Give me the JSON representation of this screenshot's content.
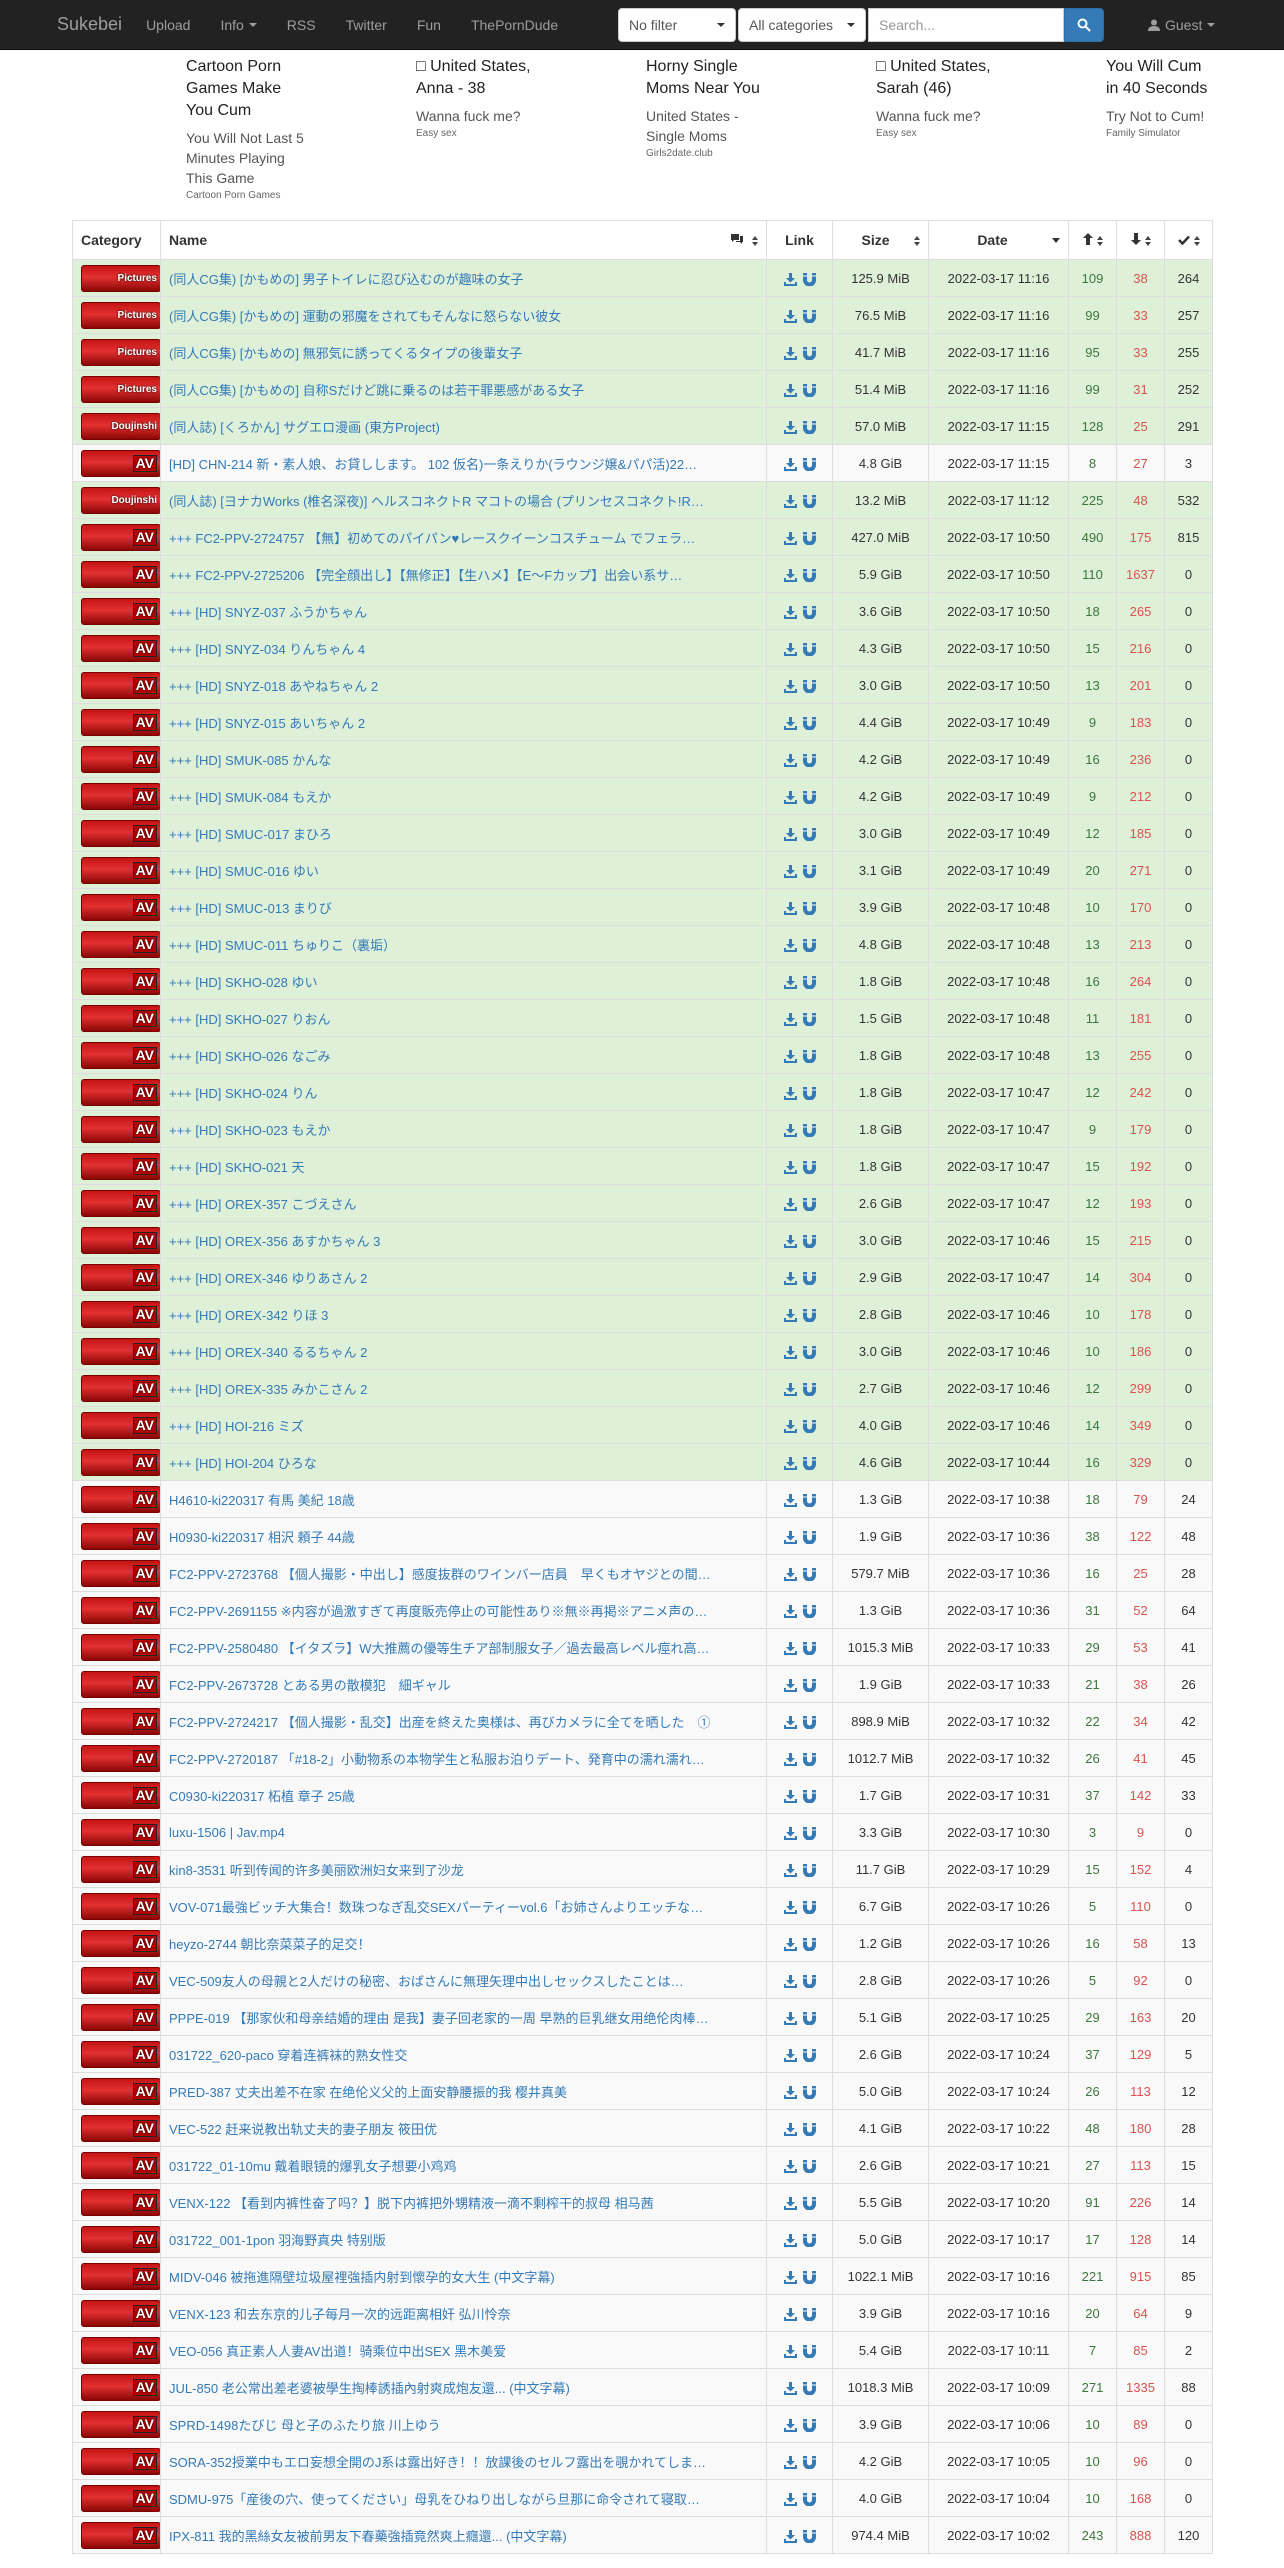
{
  "nav": {
    "brand": "Sukebei",
    "upload": "Upload",
    "info": "Info",
    "rss": "RSS",
    "twitter": "Twitter",
    "fun": "Fun",
    "porndude": "ThePornDude",
    "filter": "No filter",
    "categories": "All categories",
    "search_placeholder": "Search...",
    "guest": "Guest"
  },
  "ads": [
    {
      "title": "Cartoon Porn Games Make You Cum",
      "body": "You Will Not Last 5 Minutes Playing This Game",
      "foot": "Cartoon Porn Games"
    },
    {
      "title": "□ United States, Anna - 38",
      "body": "Wanna fuck me?",
      "foot": "Easy sex"
    },
    {
      "title": "Horny Single Moms Near You",
      "body": "United States - Single Moms",
      "foot": "Girls2date.club"
    },
    {
      "title": "□ United States, Sarah (46)",
      "body": "Wanna fuck me?",
      "foot": "Easy sex"
    },
    {
      "title": "You Will Cum in 40 Seconds",
      "body": "Try Not to Cum!",
      "foot": "Family Simulator"
    }
  ],
  "table": {
    "headers": {
      "category": "Category",
      "name": "Name",
      "link": "Link",
      "size": "Size",
      "date": "Date"
    },
    "rows": [
      {
        "cat": "Pictures",
        "name": "(同人CG集) [かもめの] 男子トイレに忍び込むのが趣味の女子",
        "size": "125.9 MiB",
        "date": "2022-03-17 11:16",
        "s": "109",
        "l": "38",
        "d": "264",
        "trusted": true
      },
      {
        "cat": "Pictures",
        "name": "(同人CG集) [かもめの] 運動の邪魔をされてもそんなに怒らない彼女",
        "size": "76.5 MiB",
        "date": "2022-03-17 11:16",
        "s": "99",
        "l": "33",
        "d": "257",
        "trusted": true
      },
      {
        "cat": "Pictures",
        "name": "(同人CG集) [かもめの] 無邪気に誘ってくるタイプの後輩女子",
        "size": "41.7 MiB",
        "date": "2022-03-17 11:16",
        "s": "95",
        "l": "33",
        "d": "255",
        "trusted": true
      },
      {
        "cat": "Pictures",
        "name": "(同人CG集) [かもめの] 自称Sだけど跳に乗るのは若干罪悪感がある女子",
        "size": "51.4 MiB",
        "date": "2022-03-17 11:16",
        "s": "99",
        "l": "31",
        "d": "252",
        "trusted": true
      },
      {
        "cat": "Doujinshi",
        "name": "(同人誌) [くろかん] サグエロ漫画 (東方Project)",
        "size": "57.0 MiB",
        "date": "2022-03-17 11:15",
        "s": "128",
        "l": "25",
        "d": "291",
        "trusted": true
      },
      {
        "cat": "AV",
        "name": "[HD] CHN-214 新・素人娘、お貸しします。 102 仮名)一条えりか(ラウンジ嬢&パパ活)22…",
        "size": "4.8 GiB",
        "date": "2022-03-17 11:15",
        "s": "8",
        "l": "27",
        "d": "3",
        "trusted": false
      },
      {
        "cat": "Doujinshi",
        "name": "(同人誌) [ヨナカWorks (椎名深夜)] ヘルスコネクトR マコトの場合 (プリンセスコネクト!R…",
        "size": "13.2 MiB",
        "date": "2022-03-17 11:12",
        "s": "225",
        "l": "48",
        "d": "532",
        "trusted": true
      },
      {
        "cat": "AV",
        "name": "+++ FC2-PPV-2724757 【無】初めてのパイパン♥レースクイーンコスチューム でフェラ…",
        "size": "427.0 MiB",
        "date": "2022-03-17 10:50",
        "s": "490",
        "l": "175",
        "d": "815",
        "trusted": true
      },
      {
        "cat": "AV",
        "name": "+++ FC2-PPV-2725206 【完全顔出し】【無修正】【生ハメ】【E～Fカップ】出会い系サ…",
        "size": "5.9 GiB",
        "date": "2022-03-17 10:50",
        "s": "110",
        "l": "1637",
        "d": "0",
        "trusted": true
      },
      {
        "cat": "AV",
        "name": "+++ [HD] SNYZ-037 ふうかちゃん",
        "size": "3.6 GiB",
        "date": "2022-03-17 10:50",
        "s": "18",
        "l": "265",
        "d": "0",
        "trusted": true
      },
      {
        "cat": "AV",
        "name": "+++ [HD] SNYZ-034 りんちゃん 4",
        "size": "4.3 GiB",
        "date": "2022-03-17 10:50",
        "s": "15",
        "l": "216",
        "d": "0",
        "trusted": true
      },
      {
        "cat": "AV",
        "name": "+++ [HD] SNYZ-018 あやねちゃん 2",
        "size": "3.0 GiB",
        "date": "2022-03-17 10:50",
        "s": "13",
        "l": "201",
        "d": "0",
        "trusted": true
      },
      {
        "cat": "AV",
        "name": "+++ [HD] SNYZ-015 あいちゃん 2",
        "size": "4.4 GiB",
        "date": "2022-03-17 10:49",
        "s": "9",
        "l": "183",
        "d": "0",
        "trusted": true
      },
      {
        "cat": "AV",
        "name": "+++ [HD] SMUK-085 かんな",
        "size": "4.2 GiB",
        "date": "2022-03-17 10:49",
        "s": "16",
        "l": "236",
        "d": "0",
        "trusted": true
      },
      {
        "cat": "AV",
        "name": "+++ [HD] SMUK-084 もえか",
        "size": "4.2 GiB",
        "date": "2022-03-17 10:49",
        "s": "9",
        "l": "212",
        "d": "0",
        "trusted": true
      },
      {
        "cat": "AV",
        "name": "+++ [HD] SMUC-017 まひろ",
        "size": "3.0 GiB",
        "date": "2022-03-17 10:49",
        "s": "12",
        "l": "185",
        "d": "0",
        "trusted": true
      },
      {
        "cat": "AV",
        "name": "+++ [HD] SMUC-016 ゆい",
        "size": "3.1 GiB",
        "date": "2022-03-17 10:49",
        "s": "20",
        "l": "271",
        "d": "0",
        "trusted": true
      },
      {
        "cat": "AV",
        "name": "+++ [HD] SMUC-013 まりび",
        "size": "3.9 GiB",
        "date": "2022-03-17 10:48",
        "s": "10",
        "l": "170",
        "d": "0",
        "trusted": true
      },
      {
        "cat": "AV",
        "name": "+++ [HD] SMUC-011 ちゅりこ（裏垢）",
        "size": "4.8 GiB",
        "date": "2022-03-17 10:48",
        "s": "13",
        "l": "213",
        "d": "0",
        "trusted": true
      },
      {
        "cat": "AV",
        "name": "+++ [HD] SKHO-028 ゆい",
        "size": "1.8 GiB",
        "date": "2022-03-17 10:48",
        "s": "16",
        "l": "264",
        "d": "0",
        "trusted": true
      },
      {
        "cat": "AV",
        "name": "+++ [HD] SKHO-027 りおん",
        "size": "1.5 GiB",
        "date": "2022-03-17 10:48",
        "s": "11",
        "l": "181",
        "d": "0",
        "trusted": true
      },
      {
        "cat": "AV",
        "name": "+++ [HD] SKHO-026 なごみ",
        "size": "1.8 GiB",
        "date": "2022-03-17 10:48",
        "s": "13",
        "l": "255",
        "d": "0",
        "trusted": true
      },
      {
        "cat": "AV",
        "name": "+++ [HD] SKHO-024 りん",
        "size": "1.8 GiB",
        "date": "2022-03-17 10:47",
        "s": "12",
        "l": "242",
        "d": "0",
        "trusted": true
      },
      {
        "cat": "AV",
        "name": "+++ [HD] SKHO-023 もえか",
        "size": "1.8 GiB",
        "date": "2022-03-17 10:47",
        "s": "9",
        "l": "179",
        "d": "0",
        "trusted": true
      },
      {
        "cat": "AV",
        "name": "+++ [HD] SKHO-021 天",
        "size": "1.8 GiB",
        "date": "2022-03-17 10:47",
        "s": "15",
        "l": "192",
        "d": "0",
        "trusted": true
      },
      {
        "cat": "AV",
        "name": "+++ [HD] OREX-357 こづえさん",
        "size": "2.6 GiB",
        "date": "2022-03-17 10:47",
        "s": "12",
        "l": "193",
        "d": "0",
        "trusted": true
      },
      {
        "cat": "AV",
        "name": "+++ [HD] OREX-356 あすかちゃん 3",
        "size": "3.0 GiB",
        "date": "2022-03-17 10:46",
        "s": "15",
        "l": "215",
        "d": "0",
        "trusted": true
      },
      {
        "cat": "AV",
        "name": "+++ [HD] OREX-346 ゆりあさん 2",
        "size": "2.9 GiB",
        "date": "2022-03-17 10:47",
        "s": "14",
        "l": "304",
        "d": "0",
        "trusted": true
      },
      {
        "cat": "AV",
        "name": "+++ [HD] OREX-342 りほ 3",
        "size": "2.8 GiB",
        "date": "2022-03-17 10:46",
        "s": "10",
        "l": "178",
        "d": "0",
        "trusted": true
      },
      {
        "cat": "AV",
        "name": "+++ [HD] OREX-340 るるちゃん 2",
        "size": "3.0 GiB",
        "date": "2022-03-17 10:46",
        "s": "10",
        "l": "186",
        "d": "0",
        "trusted": true
      },
      {
        "cat": "AV",
        "name": "+++ [HD] OREX-335 みかこさん 2",
        "size": "2.7 GiB",
        "date": "2022-03-17 10:46",
        "s": "12",
        "l": "299",
        "d": "0",
        "trusted": true
      },
      {
        "cat": "AV",
        "name": "+++ [HD] HOI-216 ミズ",
        "size": "4.0 GiB",
        "date": "2022-03-17 10:46",
        "s": "14",
        "l": "349",
        "d": "0",
        "trusted": true
      },
      {
        "cat": "AV",
        "name": "+++ [HD] HOI-204 ひろな",
        "size": "4.6 GiB",
        "date": "2022-03-17 10:44",
        "s": "16",
        "l": "329",
        "d": "0",
        "trusted": true
      },
      {
        "cat": "AV",
        "name": "H4610-ki220317 有馬 美紀 18歳",
        "size": "1.3 GiB",
        "date": "2022-03-17 10:38",
        "s": "18",
        "l": "79",
        "d": "24",
        "trusted": false
      },
      {
        "cat": "AV",
        "name": "H0930-ki220317 相沢 頼子 44歳",
        "size": "1.9 GiB",
        "date": "2022-03-17 10:36",
        "s": "38",
        "l": "122",
        "d": "48",
        "trusted": false
      },
      {
        "cat": "AV",
        "name": "FC2-PPV-2723768 【個人撮影・中出し】感度抜群のワインバー店員　早くもオヤジとの間…",
        "size": "579.7 MiB",
        "date": "2022-03-17 10:36",
        "s": "16",
        "l": "25",
        "d": "28",
        "trusted": false
      },
      {
        "cat": "AV",
        "name": "FC2-PPV-2691155 ※内容が過激すぎて再度販売停止の可能性あり※無※再掲※アニメ声の…",
        "size": "1.3 GiB",
        "date": "2022-03-17 10:36",
        "s": "31",
        "l": "52",
        "d": "64",
        "trusted": false
      },
      {
        "cat": "AV",
        "name": "FC2-PPV-2580480 【イタズラ】W大推薦の優等生チア部制服女子／過去最高レベル痙れ高…",
        "size": "1015.3 MiB",
        "date": "2022-03-17 10:33",
        "s": "29",
        "l": "53",
        "d": "41",
        "trusted": false
      },
      {
        "cat": "AV",
        "name": "FC2-PPV-2673728 とある男の散模犯　細ギャル",
        "size": "1.9 GiB",
        "date": "2022-03-17 10:33",
        "s": "21",
        "l": "38",
        "d": "26",
        "trusted": false
      },
      {
        "cat": "AV",
        "name": "FC2-PPV-2724217 【個人撮影・乱交】出産を終えた奥様は、再びカメラに全てを晒した　①",
        "size": "898.9 MiB",
        "date": "2022-03-17 10:32",
        "s": "22",
        "l": "34",
        "d": "42",
        "trusted": false
      },
      {
        "cat": "AV",
        "name": "FC2-PPV-2720187 「#18-2」小動物系の本物学生と私服お泊りデート、発育中の濡れ濡れ…",
        "size": "1012.7 MiB",
        "date": "2022-03-17 10:32",
        "s": "26",
        "l": "41",
        "d": "45",
        "trusted": false
      },
      {
        "cat": "AV",
        "name": "C0930-ki220317 柘植 章子 25歳",
        "size": "1.7 GiB",
        "date": "2022-03-17 10:31",
        "s": "37",
        "l": "142",
        "d": "33",
        "trusted": false
      },
      {
        "cat": "AV",
        "name": "luxu-1506 | Jav.mp4",
        "size": "3.3 GiB",
        "date": "2022-03-17 10:30",
        "s": "3",
        "l": "9",
        "d": "0",
        "trusted": false
      },
      {
        "cat": "AV",
        "name": "kin8-3531 听到传闻的许多美丽欧洲妇女来到了沙龙",
        "size": "11.7 GiB",
        "date": "2022-03-17 10:29",
        "s": "15",
        "l": "152",
        "d": "4",
        "trusted": false
      },
      {
        "cat": "AV",
        "name": "VOV-071最強ビッチ大集合！数珠つなぎ乱交SEXパーティーvol.6「お姉さんよりエッチな…",
        "size": "6.7 GiB",
        "date": "2022-03-17 10:26",
        "s": "5",
        "l": "110",
        "d": "0",
        "trusted": false
      },
      {
        "cat": "AV",
        "name": "heyzo-2744 朝比奈菜菜子的足交！",
        "size": "1.2 GiB",
        "date": "2022-03-17 10:26",
        "s": "16",
        "l": "58",
        "d": "13",
        "trusted": false
      },
      {
        "cat": "AV",
        "name": "VEC-509友人の母親と2人だけの秘密、おばさんに無理矢理中出しセックスしたことは…",
        "size": "2.8 GiB",
        "date": "2022-03-17 10:26",
        "s": "5",
        "l": "92",
        "d": "0",
        "trusted": false
      },
      {
        "cat": "AV",
        "name": "PPPE-019 【那家伙和母亲结婚的理由 是我】妻子回老家的一周 早熟的巨乳继女用绝伦肉棒…",
        "size": "5.1 GiB",
        "date": "2022-03-17 10:25",
        "s": "29",
        "l": "163",
        "d": "20",
        "trusted": false
      },
      {
        "cat": "AV",
        "name": "031722_620-paco 穿着连裤袜的熟女性交",
        "size": "2.6 GiB",
        "date": "2022-03-17 10:24",
        "s": "37",
        "l": "129",
        "d": "5",
        "trusted": false
      },
      {
        "cat": "AV",
        "name": "PRED-387 丈夫出差不在家 在绝伦义父的上面安静腰振的我 樱井真美",
        "size": "5.0 GiB",
        "date": "2022-03-17 10:24",
        "s": "26",
        "l": "113",
        "d": "12",
        "trusted": false
      },
      {
        "cat": "AV",
        "name": "VEC-522 赶来说教出轨丈夫的妻子朋友 筱田优",
        "size": "4.1 GiB",
        "date": "2022-03-17 10:22",
        "s": "48",
        "l": "180",
        "d": "28",
        "trusted": false
      },
      {
        "cat": "AV",
        "name": "031722_01-10mu 戴着眼镜的爆乳女子想要小鸡鸡",
        "size": "2.6 GiB",
        "date": "2022-03-17 10:21",
        "s": "27",
        "l": "113",
        "d": "15",
        "trusted": false
      },
      {
        "cat": "AV",
        "name": "VENX-122 【看到内裤性奋了吗？】脱下内裤把外甥精液一滴不剩榨干的叔母 相马茜",
        "size": "5.5 GiB",
        "date": "2022-03-17 10:20",
        "s": "91",
        "l": "226",
        "d": "14",
        "trusted": false
      },
      {
        "cat": "AV",
        "name": "031722_001-1pon 羽海野真央 特别版",
        "size": "5.0 GiB",
        "date": "2022-03-17 10:17",
        "s": "17",
        "l": "128",
        "d": "14",
        "trusted": false
      },
      {
        "cat": "AV",
        "name": "MIDV-046 被拖進隔壁垃圾屋裡強插内射到懷孕的女大生 (中文字幕)",
        "size": "1022.1 MiB",
        "date": "2022-03-17 10:16",
        "s": "221",
        "l": "915",
        "d": "85",
        "trusted": false
      },
      {
        "cat": "AV",
        "name": "VENX-123 和去东京的儿子每月一次的远距离相奸 弘川怜奈",
        "size": "3.9 GiB",
        "date": "2022-03-17 10:16",
        "s": "20",
        "l": "64",
        "d": "9",
        "trusted": false
      },
      {
        "cat": "AV",
        "name": "VEO-056 真正素人人妻AV出道！骑乘位中出SEX 黑木美爱",
        "size": "5.4 GiB",
        "date": "2022-03-17 10:11",
        "s": "7",
        "l": "85",
        "d": "2",
        "trusted": false
      },
      {
        "cat": "AV",
        "name": "JUL-850 老公常出差老婆被學生掏棒誘插內射爽成炮友還... (中文字幕)",
        "size": "1018.3 MiB",
        "date": "2022-03-17 10:09",
        "s": "271",
        "l": "1335",
        "d": "88",
        "trusted": false
      },
      {
        "cat": "AV",
        "name": "SPRD-1498たびじ 母と子のふたり旅 川上ゆう",
        "size": "3.9 GiB",
        "date": "2022-03-17 10:06",
        "s": "10",
        "l": "89",
        "d": "0",
        "trusted": false
      },
      {
        "cat": "AV",
        "name": "SORA-352授業中もエロ妄想全開のJ系は露出好き！！放課後のセルフ露出を覗かれてしま…",
        "size": "4.2 GiB",
        "date": "2022-03-17 10:05",
        "s": "10",
        "l": "96",
        "d": "0",
        "trusted": false
      },
      {
        "cat": "AV",
        "name": "SDMU-975「産後の穴、使ってください」母乳をひねり出しながら旦那に命令されて寝取…",
        "size": "4.0 GiB",
        "date": "2022-03-17 10:04",
        "s": "10",
        "l": "168",
        "d": "0",
        "trusted": false
      },
      {
        "cat": "AV",
        "name": "IPX-811 我的黑絲女友被前男友下春藥強插竟然爽上癮還... (中文字幕)",
        "size": "974.4 MiB",
        "date": "2022-03-17 10:02",
        "s": "243",
        "l": "888",
        "d": "120",
        "trusted": false
      }
    ]
  },
  "colors": {
    "navbar": "#222222",
    "trusted_row": "#dff0d8",
    "link": "#337ab7",
    "seeders": "#3c763d",
    "leechers": "#d9534f"
  }
}
